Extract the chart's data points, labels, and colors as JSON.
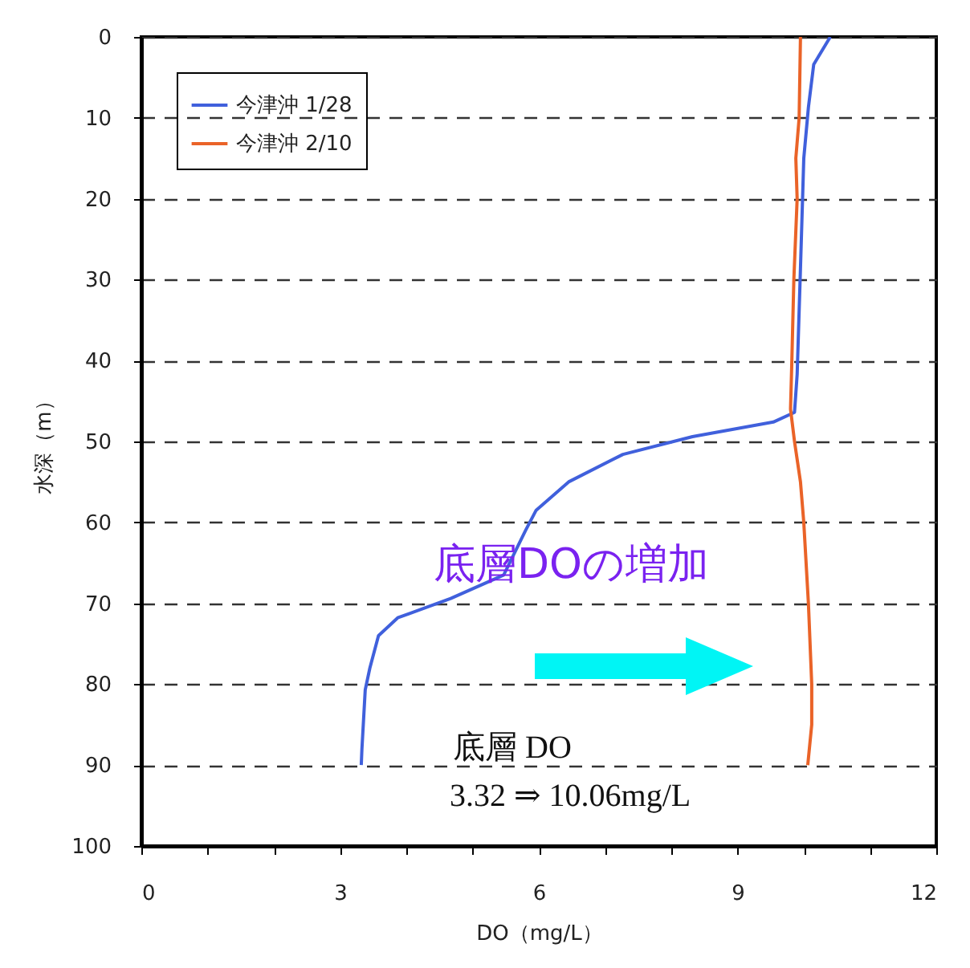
{
  "chart_data": {
    "type": "line",
    "xlabel": "DO（mg/L）",
    "ylabel": "水深（m）",
    "xlim": [
      0,
      12
    ],
    "xticks": [
      0,
      {
        "value": 1,
        "label": null
      },
      {
        "value": 2,
        "label": null
      },
      3,
      {
        "value": 4,
        "label": null
      },
      {
        "value": 5,
        "label": null
      },
      6,
      {
        "value": 7,
        "label": null
      },
      {
        "value": 8,
        "label": null
      },
      9,
      {
        "value": 10,
        "label": null
      },
      {
        "value": 11,
        "label": null
      },
      12
    ],
    "ylim": [
      100,
      0
    ],
    "yticks": [
      0,
      10,
      20,
      30,
      40,
      50,
      60,
      70,
      80,
      90,
      100
    ],
    "grid": "y",
    "legend": "top left",
    "annotations": [
      "底層DOの増加",
      "底層 DO",
      "3.32 ⇒ 10.06mg/L"
    ],
    "series": [
      {
        "name": "今津沖 1/28",
        "color": "#4060dc",
        "x": [
          10.4,
          10.15,
          10.07,
          10.0,
          9.95,
          9.9,
          9.86,
          9.54,
          8.32,
          7.27,
          6.45,
          5.96,
          5.8,
          5.47,
          4.67,
          3.87,
          3.58,
          3.45,
          3.38,
          3.33,
          3.32
        ],
        "values": [
          0,
          3.4,
          8.7,
          15,
          28.6,
          41.7,
          46.4,
          47.6,
          49.4,
          51.6,
          55,
          58.5,
          61,
          66.5,
          69.4,
          71.8,
          74,
          78,
          80.7,
          88,
          90
        ]
      },
      {
        "name": "今津沖 2/10",
        "color": "#ea6328",
        "x": [
          9.95,
          9.93,
          9.88,
          9.9,
          9.85,
          9.82,
          9.8,
          9.86,
          9.95,
          10.0,
          10.07,
          10.12,
          10.12,
          10.06
        ],
        "values": [
          0,
          10,
          15,
          20,
          30,
          40,
          46,
          50,
          55,
          60,
          70,
          80,
          85,
          90
        ]
      }
    ]
  }
}
